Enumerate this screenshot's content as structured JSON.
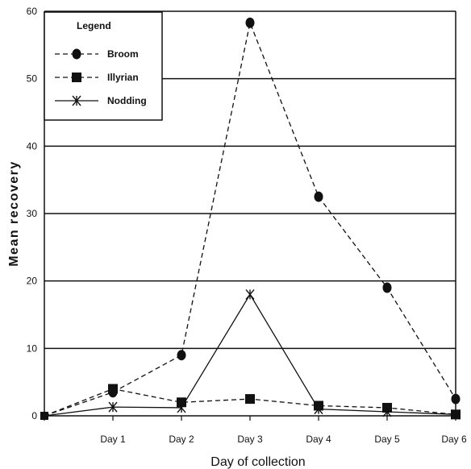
{
  "chart_data": {
    "type": "line",
    "title": "",
    "xlabel": "Day of collection",
    "ylabel": "Mean recovery",
    "categories": [
      "",
      "Day 1",
      "Day 2",
      "Day 3",
      "Day 4",
      "Day 5",
      "Day 6"
    ],
    "ylim": [
      0,
      60
    ],
    "yticks": [
      0,
      10,
      20,
      30,
      40,
      50,
      60
    ],
    "grid": "horizontal",
    "legend": {
      "title": "Legend",
      "placement": "top-left"
    },
    "series": [
      {
        "name": "Broom",
        "marker": "circle",
        "line": "dashed",
        "values": [
          0,
          3.5,
          9,
          58.3,
          32.5,
          19,
          2.5
        ]
      },
      {
        "name": "Illyrian",
        "marker": "square",
        "line": "dashed",
        "values": [
          0,
          4,
          2,
          2.5,
          1.5,
          1.2,
          0.2
        ]
      },
      {
        "name": "Nodding",
        "marker": "star",
        "line": "solid",
        "values": [
          0,
          1.3,
          1.2,
          18,
          1,
          0.6,
          0.2
        ]
      }
    ],
    "colors": {
      "line": "#111111",
      "grid": "#111111",
      "background": "#ffffff"
    }
  }
}
